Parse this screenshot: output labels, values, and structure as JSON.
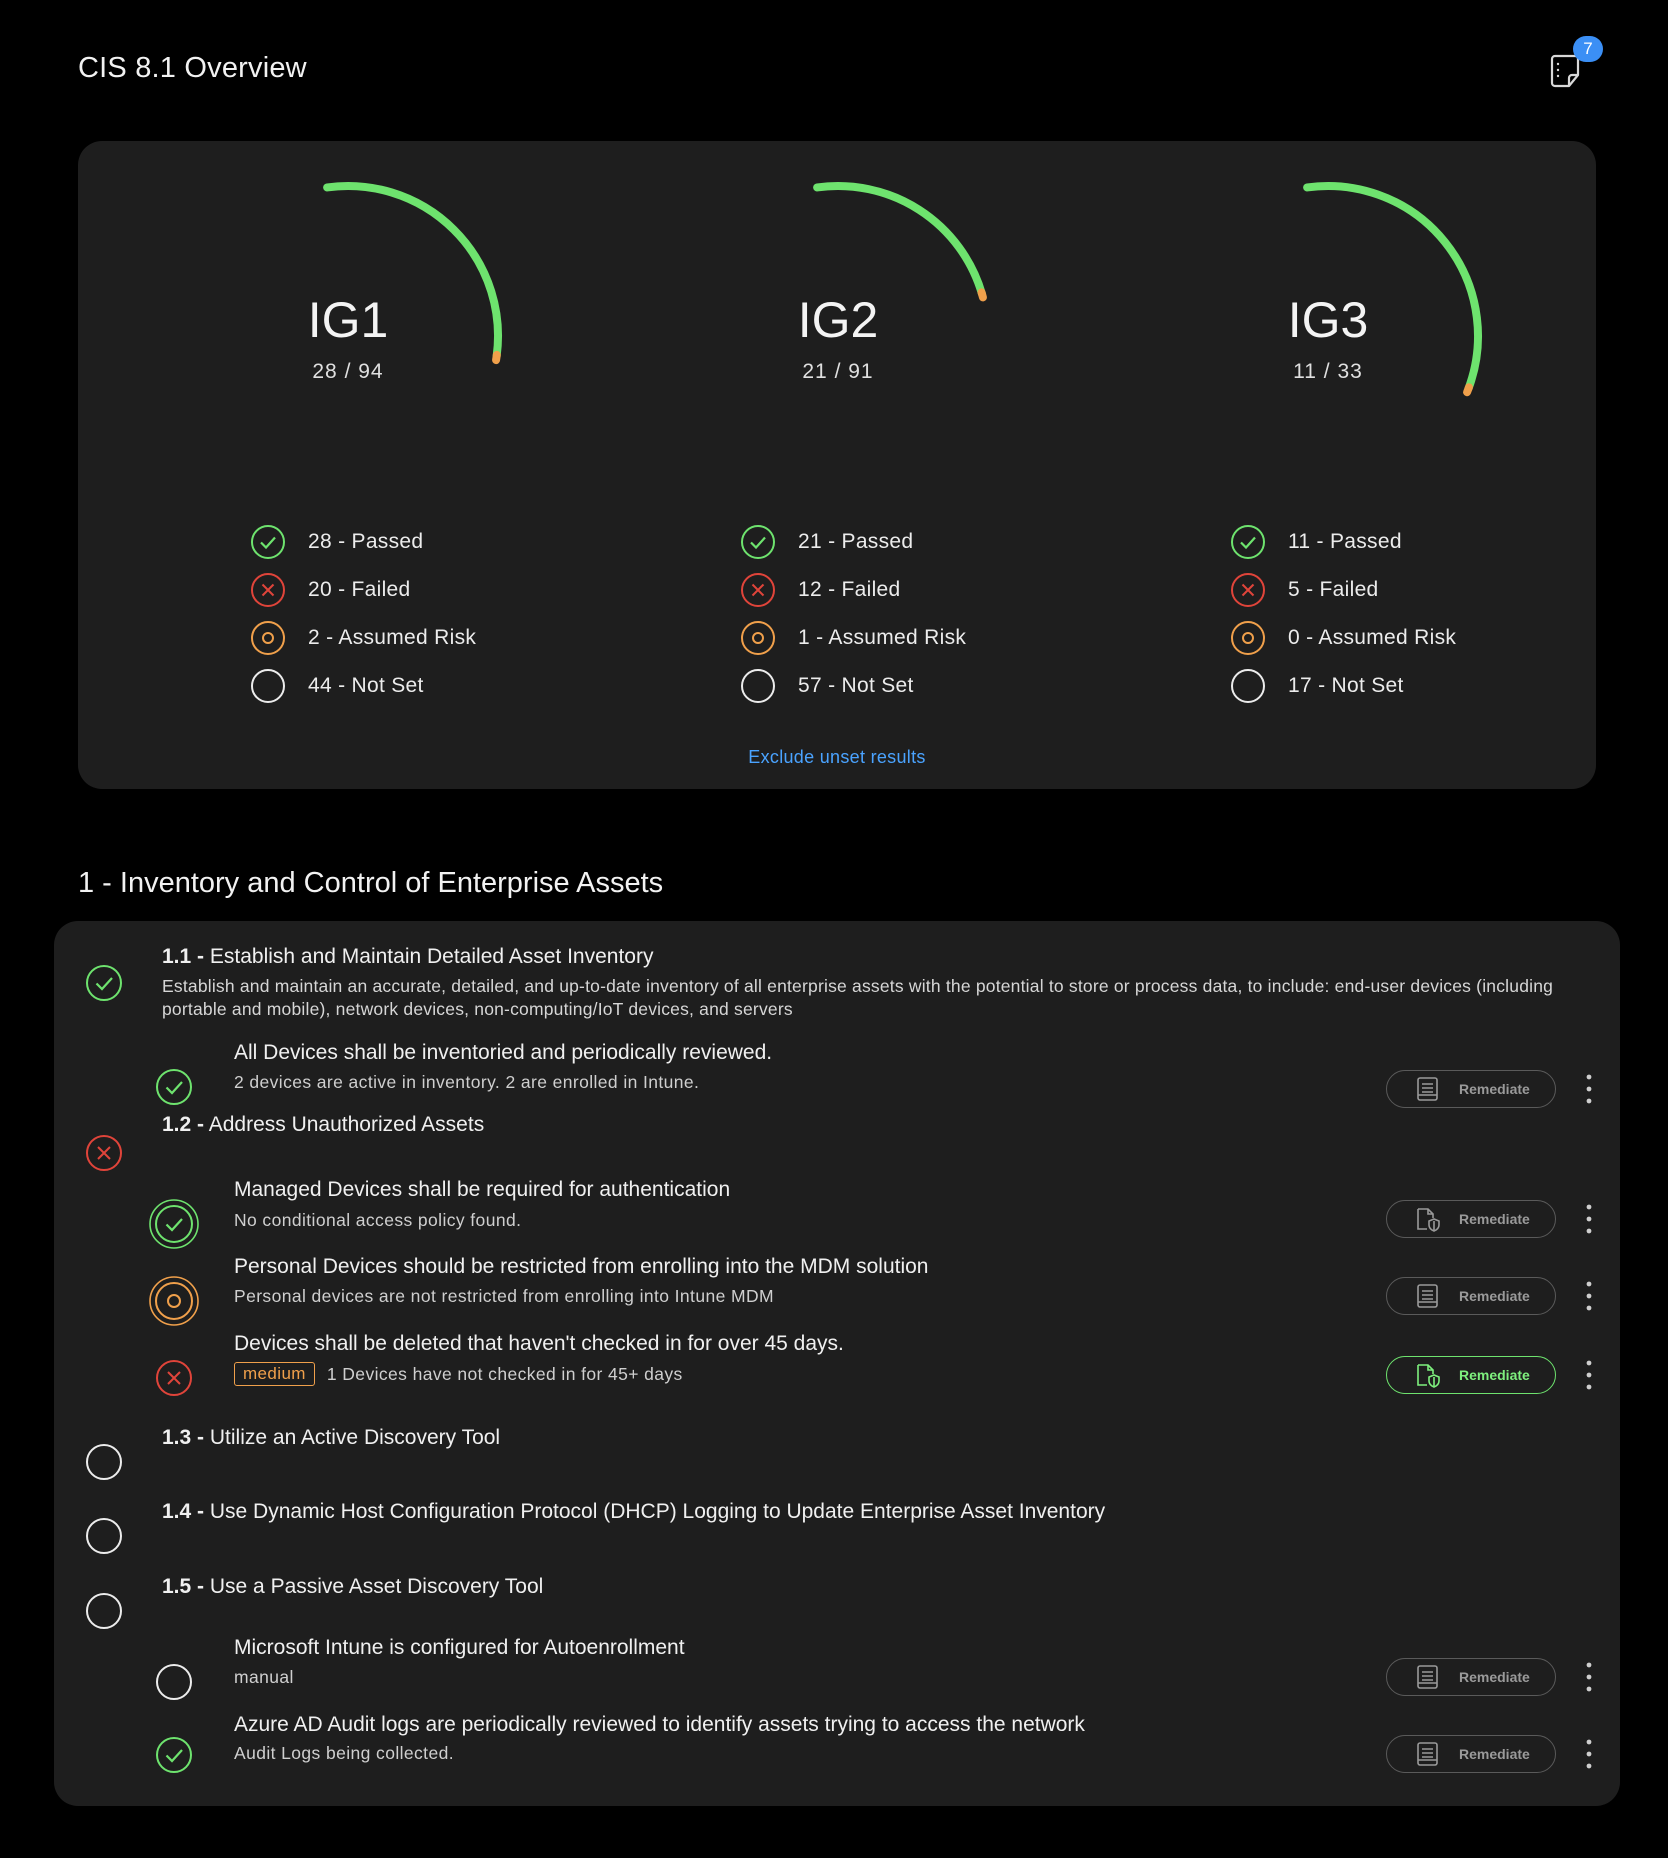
{
  "page": {
    "title": "CIS 8.1 Overview"
  },
  "notifications": {
    "count": "7",
    "icon": "sticky-note-icon",
    "badge_color": "#3b8ff5"
  },
  "colors": {
    "passed": "#6ee36e",
    "failed": "#e0443a",
    "assumed": "#f0a04b",
    "notset": "#ececec",
    "link": "#4aa3ff",
    "gauge_end": "#f0a04b"
  },
  "overview": {
    "groups": [
      {
        "name": "IG1",
        "ratio": "28 / 94",
        "passed": 28,
        "total": 94,
        "stats": {
          "passed": "28 - Passed",
          "failed": "20 - Failed",
          "assumed": "2 - Assumed Risk",
          "notset": "44 - Not Set"
        }
      },
      {
        "name": "IG2",
        "ratio": "21 / 91",
        "passed": 21,
        "total": 91,
        "stats": {
          "passed": "21 - Passed",
          "failed": "12 - Failed",
          "assumed": "1 - Assumed Risk",
          "notset": "57 - Not Set"
        }
      },
      {
        "name": "IG3",
        "ratio": "11 / 33",
        "passed": 11,
        "total": 33,
        "stats": {
          "passed": "11 - Passed",
          "failed": "5 - Failed",
          "assumed": "0 - Assumed Risk",
          "notset": "17 - Not Set"
        }
      }
    ],
    "exclude_link": "Exclude unset results"
  },
  "section": {
    "title": "1 - Inventory and Control of Enterprise Assets",
    "controls": [
      {
        "id": "1.1 -",
        "title": "Establish and Maintain Detailed Asset Inventory",
        "status": "passed",
        "description": "Establish and maintain an accurate, detailed, and up-to-date inventory of all enterprise assets with the potential to store or process data, to include: end-user devices (including portable and mobile), network devices, non-computing/IoT devices, and servers",
        "checks": [
          {
            "title": "All Devices shall be inventoried and periodically reviewed.",
            "detail": "2 devices are active in inventory. 2 are enrolled in Intune.",
            "status": "passed",
            "remediate": "Remediate",
            "remediate_icon": "document-icon",
            "remediate_active": false
          }
        ]
      },
      {
        "id": "1.2 -",
        "title": "Address Unauthorized Assets",
        "status": "failed",
        "checks": [
          {
            "title": "Managed Devices shall be required for authentication",
            "detail": "No conditional access policy found.",
            "status": "passed-override",
            "remediate": "Remediate",
            "remediate_icon": "shield-document-icon",
            "remediate_active": false
          },
          {
            "title": "Personal Devices should be restricted from enrolling into the MDM solution",
            "detail": "Personal devices are not restricted from enrolling into Intune MDM",
            "status": "assumed-override",
            "remediate": "Remediate",
            "remediate_icon": "document-icon",
            "remediate_active": false
          },
          {
            "title": "Devices shall be deleted that haven't checked in for over 45 days.",
            "severity": "medium",
            "detail": "1 Devices have not checked in for 45+ days",
            "status": "failed",
            "remediate": "Remediate",
            "remediate_icon": "shield-document-icon",
            "remediate_active": true
          }
        ]
      },
      {
        "id": "1.3 -",
        "title": "Utilize an Active Discovery Tool",
        "status": "notset",
        "checks": []
      },
      {
        "id": "1.4 -",
        "title": "Use Dynamic Host Configuration Protocol (DHCP) Logging to Update Enterprise Asset Inventory",
        "status": "notset",
        "checks": []
      },
      {
        "id": "1.5 -",
        "title": "Use a Passive Asset Discovery Tool",
        "status": "notset",
        "checks": [
          {
            "title": "Microsoft Intune is configured for Autoenrollment",
            "detail": "manual",
            "status": "notset",
            "remediate": "Remediate",
            "remediate_icon": "document-icon",
            "remediate_active": false
          },
          {
            "title": "Azure AD Audit logs are periodically reviewed to identify assets trying to access the network",
            "detail": "Audit Logs being collected.",
            "status": "passed",
            "remediate": "Remediate",
            "remediate_icon": "document-icon",
            "remediate_active": false
          }
        ]
      }
    ]
  }
}
